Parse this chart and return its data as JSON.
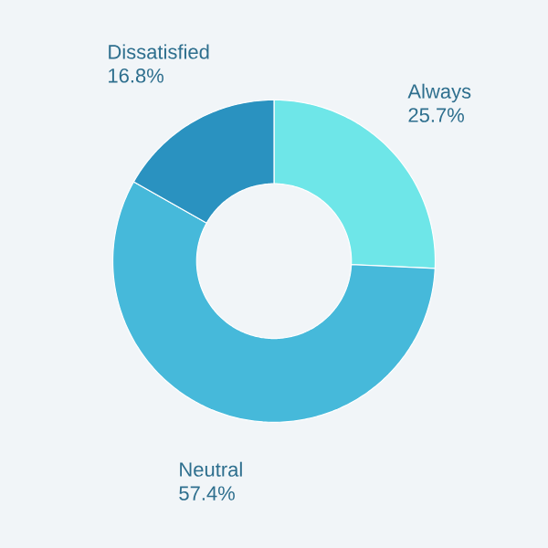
{
  "chart_data": {
    "type": "donut",
    "categories": [
      "Always",
      "Neutral",
      "Dissatisfied"
    ],
    "values": [
      25.7,
      57.4,
      16.8
    ],
    "value_labels": [
      "25.7%",
      "57.4%",
      "16.8%"
    ],
    "colors": [
      "#6ee6e8",
      "#46b9da",
      "#2a92c0"
    ]
  }
}
